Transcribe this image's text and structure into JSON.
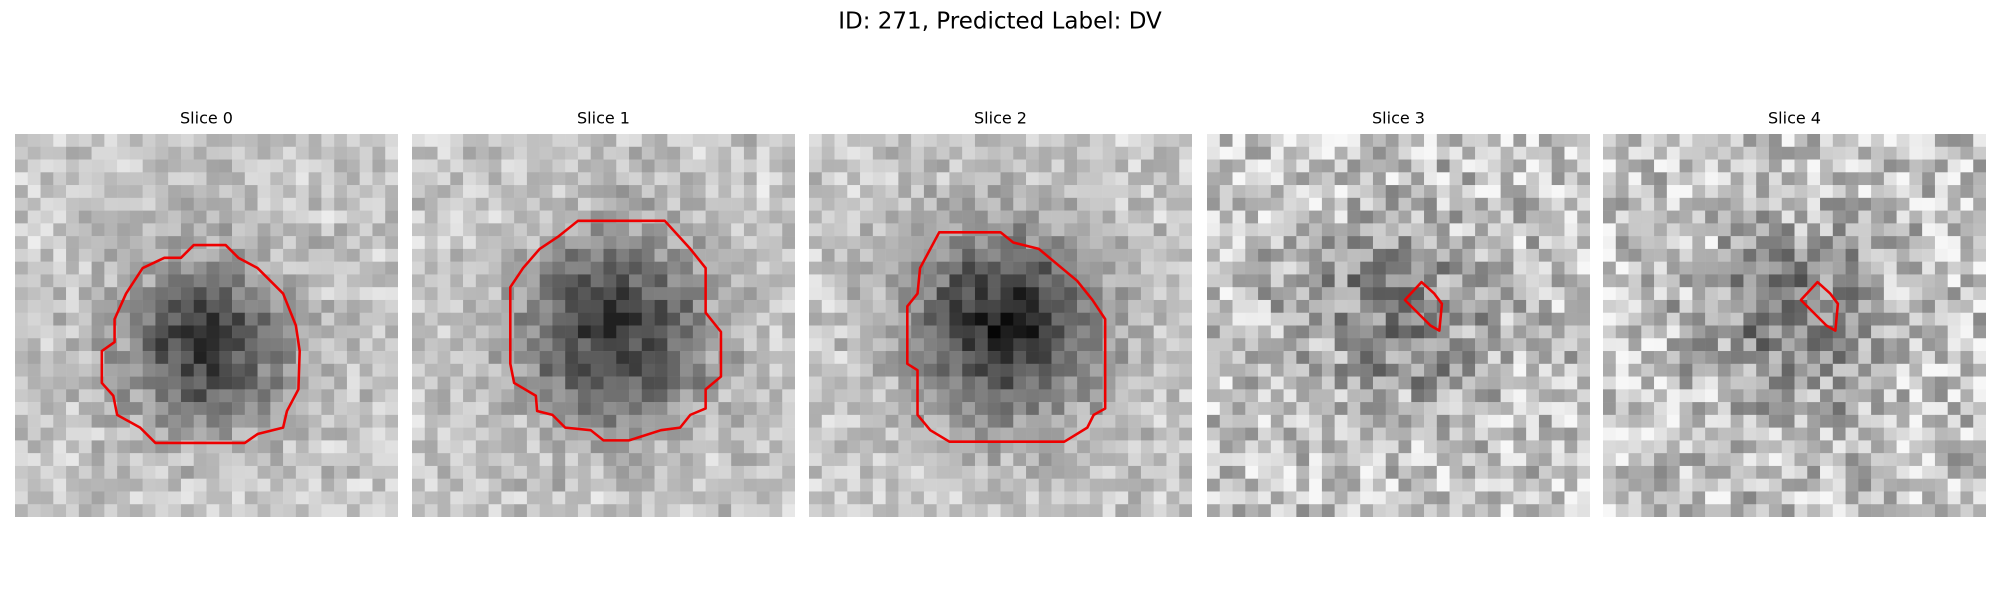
{
  "title": "ID: 271, Predicted Label: DV",
  "panels": [
    {
      "title": "Slice 0"
    },
    {
      "title": "Slice 1"
    },
    {
      "title": "Slice 2"
    },
    {
      "title": "Slice 3"
    },
    {
      "title": "Slice 4"
    }
  ]
}
